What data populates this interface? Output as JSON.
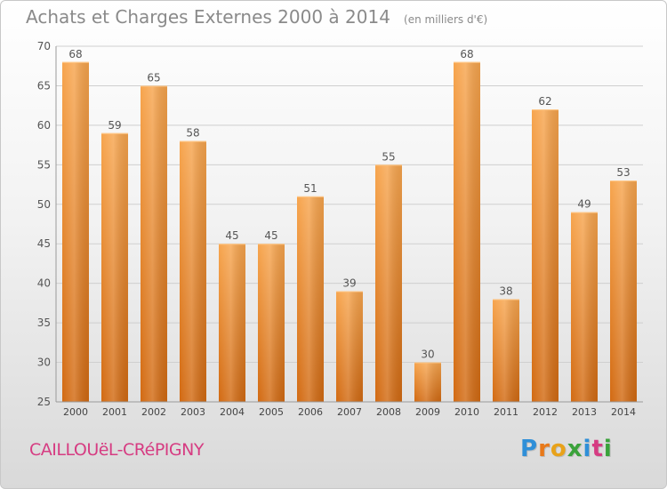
{
  "chart_data": {
    "type": "bar",
    "title": "Achats et Charges Externes 2000 à 2014",
    "subtitle": "(en milliers d'€)",
    "categories": [
      "2000",
      "2001",
      "2002",
      "2003",
      "2004",
      "2005",
      "2006",
      "2007",
      "2008",
      "2009",
      "2010",
      "2011",
      "2012",
      "2013",
      "2014"
    ],
    "values": [
      68,
      59,
      65,
      58,
      45,
      45,
      51,
      39,
      55,
      30,
      68,
      38,
      62,
      49,
      53
    ],
    "xlabel": "",
    "ylabel": "",
    "ylim": [
      25,
      70
    ],
    "yticks": [
      25,
      30,
      35,
      40,
      45,
      50,
      55,
      60,
      65,
      70
    ],
    "grid": true,
    "legend": "none",
    "bar_color_top": "#f7a54e",
    "bar_color_bottom": "#d26a12",
    "grid_color": "#cfcfcf"
  },
  "footer": {
    "commune": "CAILLOUëL-CRéPIGNY",
    "logo_letters": [
      "P",
      "r",
      "o",
      "x",
      "i",
      "t",
      "i"
    ],
    "logo_colors": [
      "#2f8fd8",
      "#e8791a",
      "#e8a21a",
      "#3aa23a",
      "#2f8fd8",
      "#d63c82",
      "#3aa23a"
    ]
  }
}
